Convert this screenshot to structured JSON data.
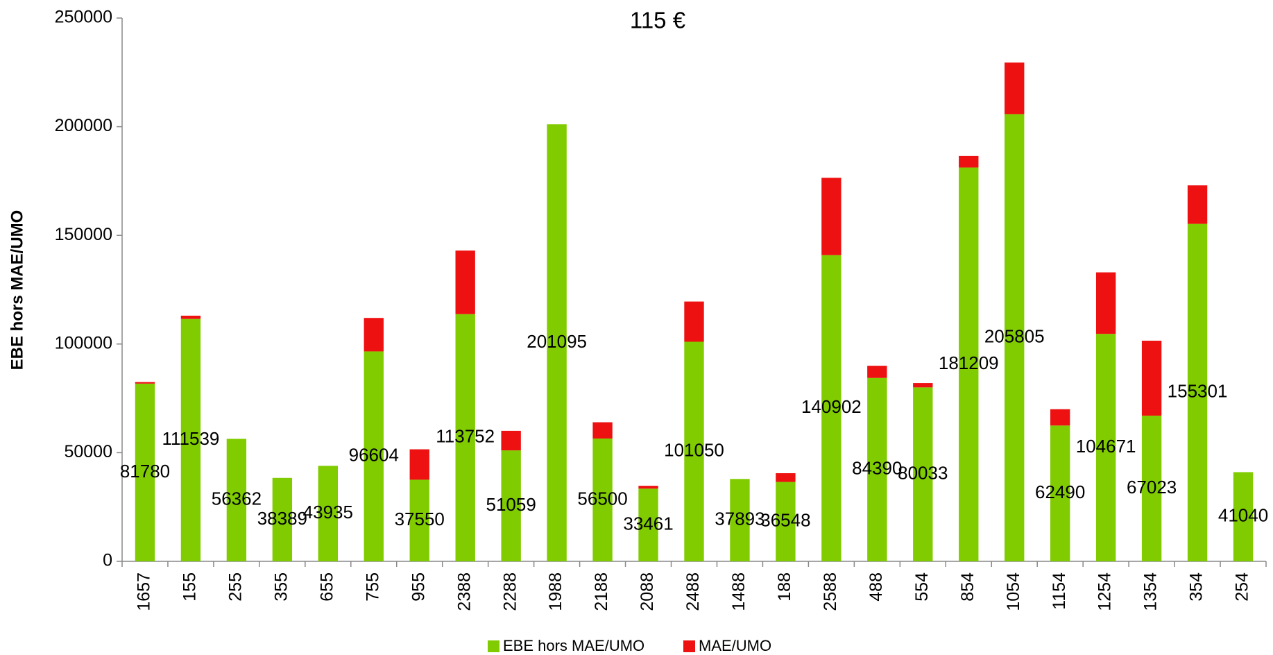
{
  "chart_data": {
    "type": "stacked_bar",
    "subtitle": "115 €",
    "y_label": "EBE hors MAE/UMO",
    "categories": [
      "1657",
      "155",
      "255",
      "355",
      "655",
      "755",
      "955",
      "2388",
      "2288",
      "1988",
      "2188",
      "2088",
      "2488",
      "1488",
      "188",
      "2588",
      "488",
      "554",
      "854",
      "1054",
      "1154",
      "1254",
      "1354",
      "354",
      "254"
    ],
    "series": [
      {
        "name": "EBE hors MAE/UMO",
        "color": "#80cc00",
        "values": [
          81780,
          111539,
          56362,
          38389,
          43935,
          96604,
          37550,
          113752,
          51059,
          201095,
          56500,
          33461,
          101050,
          37893,
          36548,
          140902,
          84390,
          80033,
          181209,
          205805,
          62490,
          104671,
          67023,
          155301,
          41040
        ]
      },
      {
        "name": "MAE/UMO",
        "color": "#ee1111",
        "values": [
          700,
          1500,
          0,
          0,
          0,
          15400,
          14000,
          29250,
          9000,
          0,
          7500,
          1300,
          18500,
          0,
          4000,
          35600,
          5600,
          2000,
          5300,
          23700,
          7500,
          28300,
          34500,
          17700,
          0
        ]
      }
    ],
    "ylim": [
      0,
      250000
    ],
    "yticks": [
      0,
      50000,
      100000,
      150000,
      200000,
      250000
    ],
    "grid": false,
    "legend": "bottom"
  }
}
